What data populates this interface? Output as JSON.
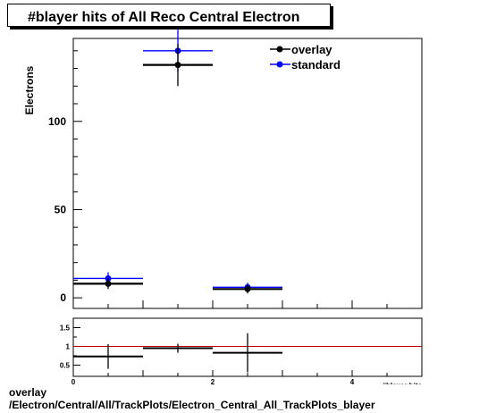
{
  "chart_data": [
    {
      "type": "scatter",
      "title": "#blayer hits of All Reco Central  Electron",
      "ylabel": "Electrons",
      "xlim": [
        0,
        5
      ],
      "ylim": [
        -6,
        147
      ],
      "x_tick_labels": [
        "0",
        "2",
        "4"
      ],
      "y_tick_labels": [
        "0",
        "50",
        "100"
      ],
      "legend_position": "top-right",
      "series": [
        {
          "name": "overlay",
          "color": "#000000",
          "points": [
            {
              "x": 0.5,
              "y": 8,
              "err": 3
            },
            {
              "x": 1.5,
              "y": 132,
              "err": 12
            },
            {
              "x": 2.5,
              "y": 5,
              "err": 2.5
            }
          ]
        },
        {
          "name": "standard",
          "color": "#0000ff",
          "points": [
            {
              "x": 0.5,
              "y": 11,
              "err": 3.5
            },
            {
              "x": 1.5,
              "y": 140,
              "err": 12
            },
            {
              "x": 2.5,
              "y": 6,
              "err": 2.5
            }
          ]
        }
      ]
    },
    {
      "type": "scatter",
      "title": "",
      "xlabel": "#blayer hits",
      "xlim": [
        0,
        5
      ],
      "ylim": [
        0.2,
        1.75
      ],
      "x_tick_labels": [
        "0",
        "2",
        "4"
      ],
      "y_tick_labels": [
        "0.5",
        "1",
        "1.5"
      ],
      "reference_line": 1,
      "reference_color": "#c00000",
      "points": [
        {
          "x": 0.5,
          "y": 0.73,
          "err": 0.33
        },
        {
          "x": 1.5,
          "y": 0.95,
          "err": 0.12
        },
        {
          "x": 2.5,
          "y": 0.83,
          "err": 0.52
        }
      ]
    }
  ],
  "footer": {
    "line1": "overlay",
    "line2": "/Electron/Central/All/TrackPlots/Electron_Central_All_TrackPlots_blayer"
  }
}
